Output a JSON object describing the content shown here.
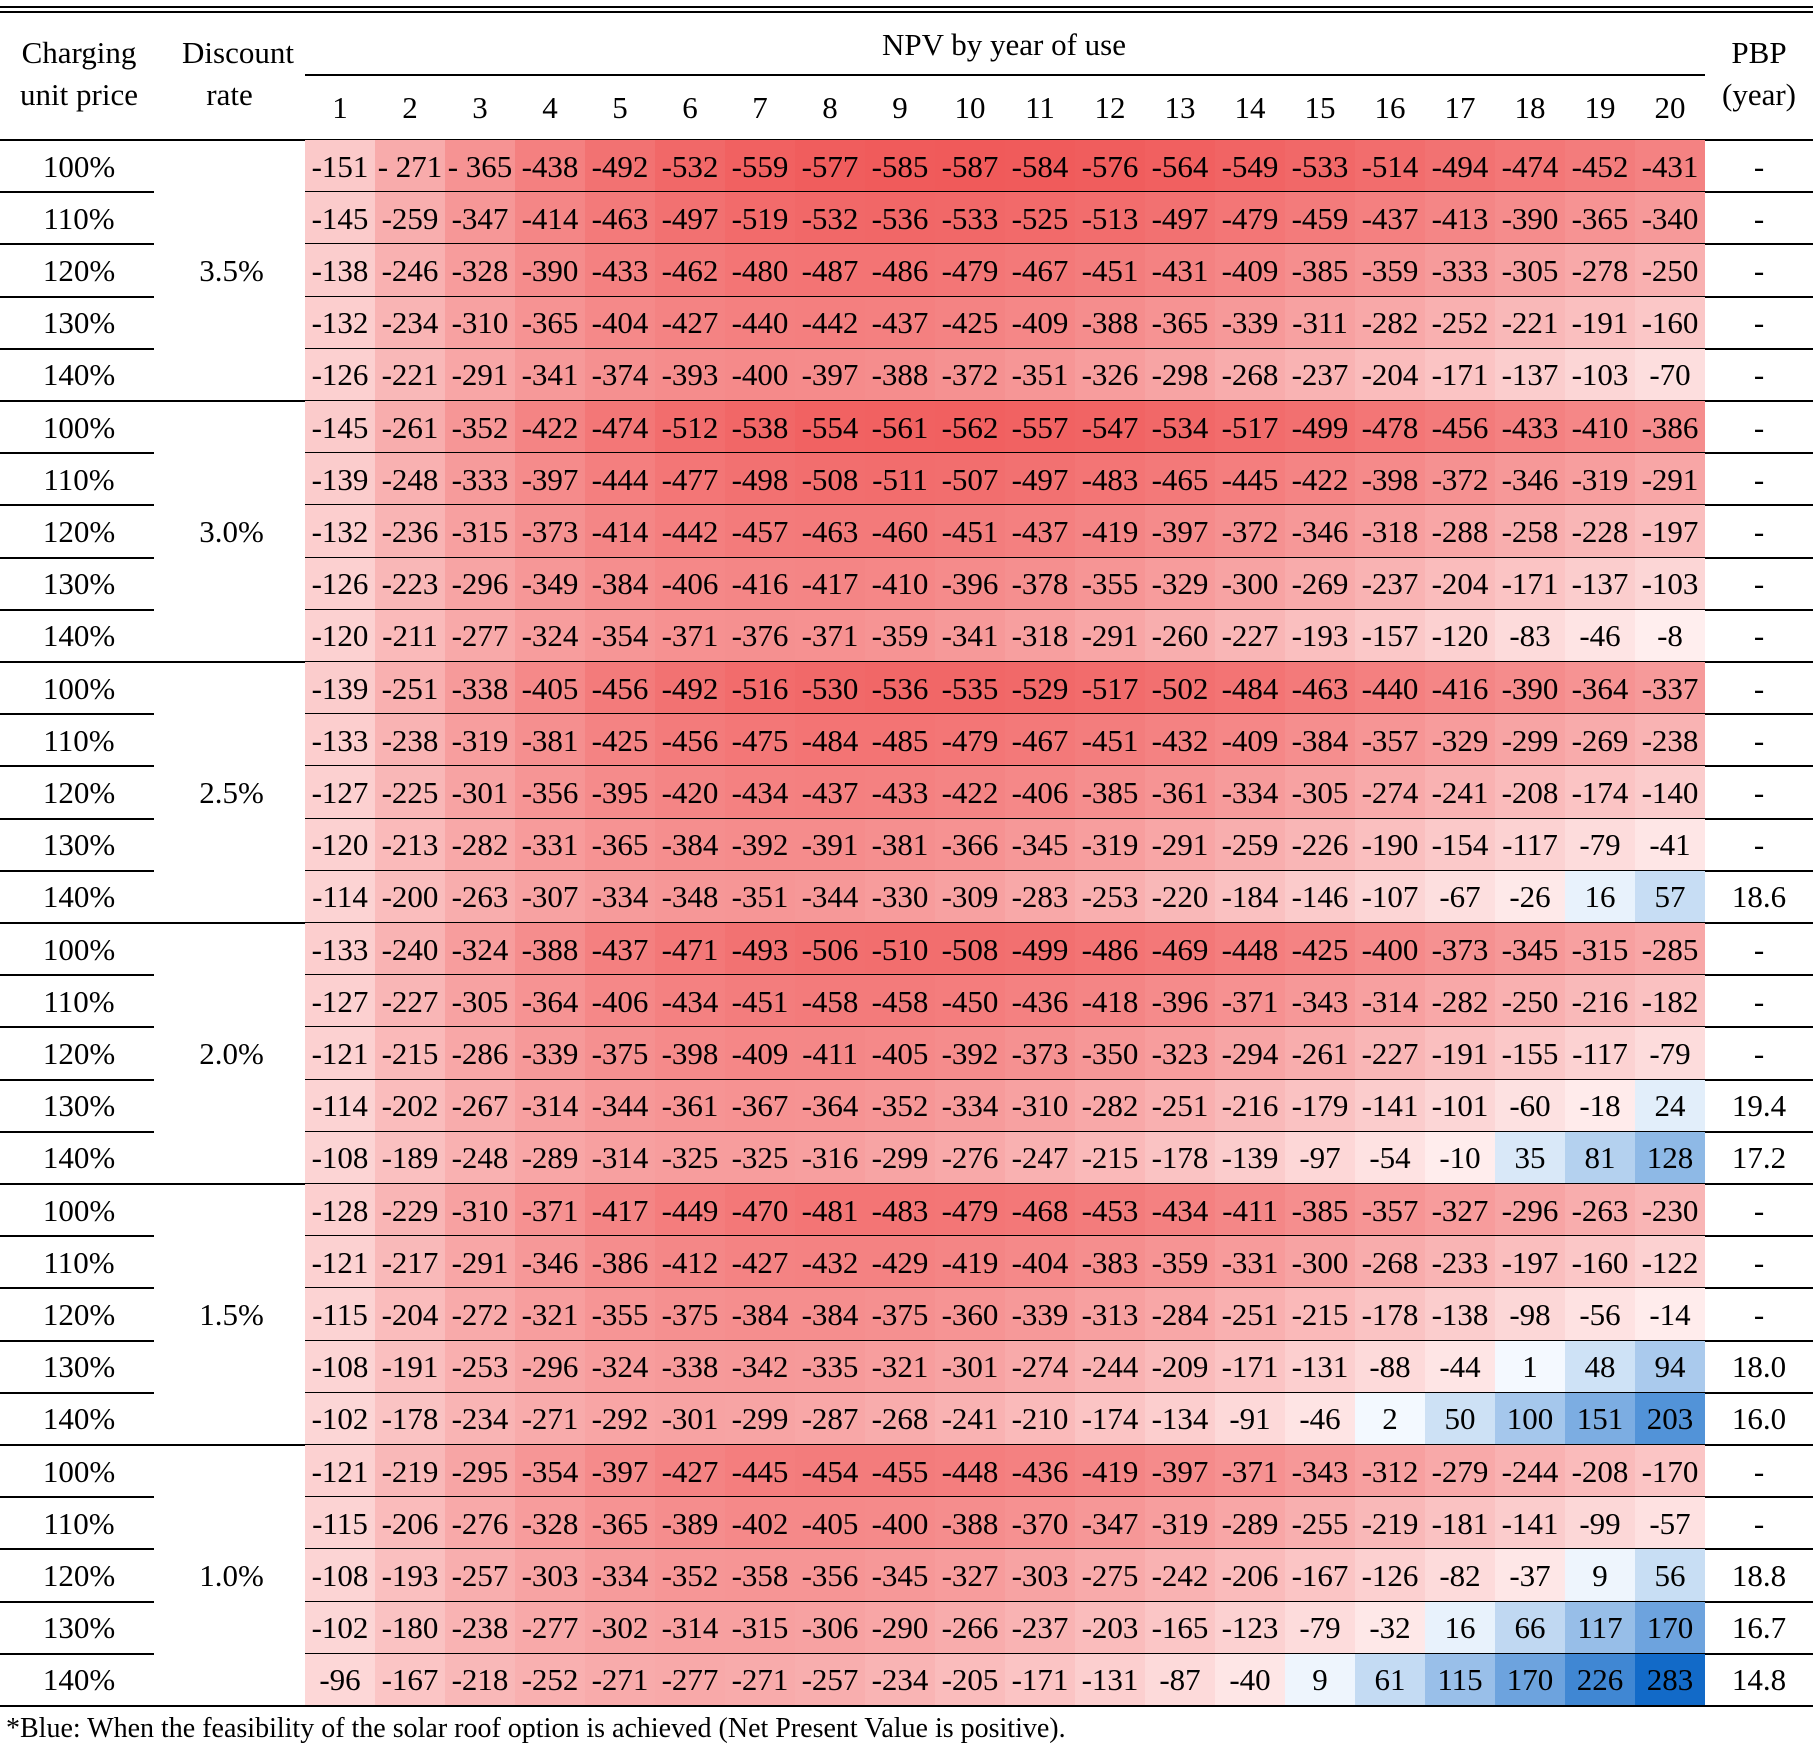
{
  "chart_data": {
    "type": "table",
    "headers": {
      "charging_unit_price": "Charging unit price",
      "discount_rate": "Discount rate",
      "npv_group": "NPV by year of use",
      "pbp": "PBP (year)",
      "years": [
        "1",
        "2",
        "3",
        "4",
        "5",
        "6",
        "7",
        "8",
        "9",
        "10",
        "11",
        "12",
        "13",
        "14",
        "15",
        "16",
        "17",
        "18",
        "19",
        "20"
      ]
    },
    "groups": [
      {
        "discount_rate": "3.5%",
        "rows": [
          {
            "price": "100%",
            "npv": [
              "-151",
              "- 271",
              "- 365",
              "-438",
              "-492",
              "-532",
              "-559",
              "-577",
              "-585",
              "-587",
              "-584",
              "-576",
              "-564",
              "-549",
              "-533",
              "-514",
              "-494",
              "-474",
              "-452",
              "-431"
            ],
            "pbp": "-"
          },
          {
            "price": "110%",
            "npv": [
              "-145",
              "-259",
              "-347",
              "-414",
              "-463",
              "-497",
              "-519",
              "-532",
              "-536",
              "-533",
              "-525",
              "-513",
              "-497",
              "-479",
              "-459",
              "-437",
              "-413",
              "-390",
              "-365",
              "-340"
            ],
            "pbp": "-"
          },
          {
            "price": "120%",
            "npv": [
              "-138",
              "-246",
              "-328",
              "-390",
              "-433",
              "-462",
              "-480",
              "-487",
              "-486",
              "-479",
              "-467",
              "-451",
              "-431",
              "-409",
              "-385",
              "-359",
              "-333",
              "-305",
              "-278",
              "-250"
            ],
            "pbp": "-"
          },
          {
            "price": "130%",
            "npv": [
              "-132",
              "-234",
              "-310",
              "-365",
              "-404",
              "-427",
              "-440",
              "-442",
              "-437",
              "-425",
              "-409",
              "-388",
              "-365",
              "-339",
              "-311",
              "-282",
              "-252",
              "-221",
              "-191",
              "-160"
            ],
            "pbp": "-"
          },
          {
            "price": "140%",
            "npv": [
              "-126",
              "-221",
              "-291",
              "-341",
              "-374",
              "-393",
              "-400",
              "-397",
              "-388",
              "-372",
              "-351",
              "-326",
              "-298",
              "-268",
              "-237",
              "-204",
              "-171",
              "-137",
              "-103",
              "-70"
            ],
            "pbp": "-"
          }
        ]
      },
      {
        "discount_rate": "3.0%",
        "rows": [
          {
            "price": "100%",
            "npv": [
              "-145",
              "-261",
              "-352",
              "-422",
              "-474",
              "-512",
              "-538",
              "-554",
              "-561",
              "-562",
              "-557",
              "-547",
              "-534",
              "-517",
              "-499",
              "-478",
              "-456",
              "-433",
              "-410",
              "-386"
            ],
            "pbp": "-"
          },
          {
            "price": "110%",
            "npv": [
              "-139",
              "-248",
              "-333",
              "-397",
              "-444",
              "-477",
              "-498",
              "-508",
              "-511",
              "-507",
              "-497",
              "-483",
              "-465",
              "-445",
              "-422",
              "-398",
              "-372",
              "-346",
              "-319",
              "-291"
            ],
            "pbp": "-"
          },
          {
            "price": "120%",
            "npv": [
              "-132",
              "-236",
              "-315",
              "-373",
              "-414",
              "-442",
              "-457",
              "-463",
              "-460",
              "-451",
              "-437",
              "-419",
              "-397",
              "-372",
              "-346",
              "-318",
              "-288",
              "-258",
              "-228",
              "-197"
            ],
            "pbp": "-"
          },
          {
            "price": "130%",
            "npv": [
              "-126",
              "-223",
              "-296",
              "-349",
              "-384",
              "-406",
              "-416",
              "-417",
              "-410",
              "-396",
              "-378",
              "-355",
              "-329",
              "-300",
              "-269",
              "-237",
              "-204",
              "-171",
              "-137",
              "-103"
            ],
            "pbp": "-"
          },
          {
            "price": "140%",
            "npv": [
              "-120",
              "-211",
              "-277",
              "-324",
              "-354",
              "-371",
              "-376",
              "-371",
              "-359",
              "-341",
              "-318",
              "-291",
              "-260",
              "-227",
              "-193",
              "-157",
              "-120",
              "-83",
              "-46",
              "-8"
            ],
            "pbp": "-"
          }
        ]
      },
      {
        "discount_rate": "2.5%",
        "rows": [
          {
            "price": "100%",
            "npv": [
              "-139",
              "-251",
              "-338",
              "-405",
              "-456",
              "-492",
              "-516",
              "-530",
              "-536",
              "-535",
              "-529",
              "-517",
              "-502",
              "-484",
              "-463",
              "-440",
              "-416",
              "-390",
              "-364",
              "-337"
            ],
            "pbp": "-"
          },
          {
            "price": "110%",
            "npv": [
              "-133",
              "-238",
              "-319",
              "-381",
              "-425",
              "-456",
              "-475",
              "-484",
              "-485",
              "-479",
              "-467",
              "-451",
              "-432",
              "-409",
              "-384",
              "-357",
              "-329",
              "-299",
              "-269",
              "-238"
            ],
            "pbp": "-"
          },
          {
            "price": "120%",
            "npv": [
              "-127",
              "-225",
              "-301",
              "-356",
              "-395",
              "-420",
              "-434",
              "-437",
              "-433",
              "-422",
              "-406",
              "-385",
              "-361",
              "-334",
              "-305",
              "-274",
              "-241",
              "-208",
              "-174",
              "-140"
            ],
            "pbp": "-"
          },
          {
            "price": "130%",
            "npv": [
              "-120",
              "-213",
              "-282",
              "-331",
              "-365",
              "-384",
              "-392",
              "-391",
              "-381",
              "-366",
              "-345",
              "-319",
              "-291",
              "-259",
              "-226",
              "-190",
              "-154",
              "-117",
              "-79",
              "-41"
            ],
            "pbp": "-"
          },
          {
            "price": "140%",
            "npv": [
              "-114",
              "-200",
              "-263",
              "-307",
              "-334",
              "-348",
              "-351",
              "-344",
              "-330",
              "-309",
              "-283",
              "-253",
              "-220",
              "-184",
              "-146",
              "-107",
              "-67",
              "-26",
              "16",
              "57"
            ],
            "pbp": "18.6"
          }
        ]
      },
      {
        "discount_rate": "2.0%",
        "rows": [
          {
            "price": "100%",
            "npv": [
              "-133",
              "-240",
              "-324",
              "-388",
              "-437",
              "-471",
              "-493",
              "-506",
              "-510",
              "-508",
              "-499",
              "-486",
              "-469",
              "-448",
              "-425",
              "-400",
              "-373",
              "-345",
              "-315",
              "-285"
            ],
            "pbp": "-"
          },
          {
            "price": "110%",
            "npv": [
              "-127",
              "-227",
              "-305",
              "-364",
              "-406",
              "-434",
              "-451",
              "-458",
              "-458",
              "-450",
              "-436",
              "-418",
              "-396",
              "-371",
              "-343",
              "-314",
              "-282",
              "-250",
              "-216",
              "-182"
            ],
            "pbp": "-"
          },
          {
            "price": "120%",
            "npv": [
              "-121",
              "-215",
              "-286",
              "-339",
              "-375",
              "-398",
              "-409",
              "-411",
              "-405",
              "-392",
              "-373",
              "-350",
              "-323",
              "-294",
              "-261",
              "-227",
              "-191",
              "-155",
              "-117",
              "-79"
            ],
            "pbp": "-"
          },
          {
            "price": "130%",
            "npv": [
              "-114",
              "-202",
              "-267",
              "-314",
              "-344",
              "-361",
              "-367",
              "-364",
              "-352",
              "-334",
              "-310",
              "-282",
              "-251",
              "-216",
              "-179",
              "-141",
              "-101",
              "-60",
              "-18",
              "24"
            ],
            "pbp": "19.4"
          },
          {
            "price": "140%",
            "npv": [
              "-108",
              "-189",
              "-248",
              "-289",
              "-314",
              "-325",
              "-325",
              "-316",
              "-299",
              "-276",
              "-247",
              "-215",
              "-178",
              "-139",
              "-97",
              "-54",
              "-10",
              "35",
              "81",
              "128"
            ],
            "pbp": "17.2"
          }
        ]
      },
      {
        "discount_rate": "1.5%",
        "rows": [
          {
            "price": "100%",
            "npv": [
              "-128",
              "-229",
              "-310",
              "-371",
              "-417",
              "-449",
              "-470",
              "-481",
              "-483",
              "-479",
              "-468",
              "-453",
              "-434",
              "-411",
              "-385",
              "-357",
              "-327",
              "-296",
              "-263",
              "-230"
            ],
            "pbp": "-"
          },
          {
            "price": "110%",
            "npv": [
              "-121",
              "-217",
              "-291",
              "-346",
              "-386",
              "-412",
              "-427",
              "-432",
              "-429",
              "-419",
              "-404",
              "-383",
              "-359",
              "-331",
              "-300",
              "-268",
              "-233",
              "-197",
              "-160",
              "-122"
            ],
            "pbp": "-"
          },
          {
            "price": "120%",
            "npv": [
              "-115",
              "-204",
              "-272",
              "-321",
              "-355",
              "-375",
              "-384",
              "-384",
              "-375",
              "-360",
              "-339",
              "-313",
              "-284",
              "-251",
              "-215",
              "-178",
              "-138",
              "-98",
              "-56",
              "-14"
            ],
            "pbp": "-"
          },
          {
            "price": "130%",
            "npv": [
              "-108",
              "-191",
              "-253",
              "-296",
              "-324",
              "-338",
              "-342",
              "-335",
              "-321",
              "-301",
              "-274",
              "-244",
              "-209",
              "-171",
              "-131",
              "-88",
              "-44",
              "1",
              "48",
              "94"
            ],
            "pbp": "18.0"
          },
          {
            "price": "140%",
            "npv": [
              "-102",
              "-178",
              "-234",
              "-271",
              "-292",
              "-301",
              "-299",
              "-287",
              "-268",
              "-241",
              "-210",
              "-174",
              "-134",
              "-91",
              "-46",
              "2",
              "50",
              "100",
              "151",
              "203"
            ],
            "pbp": "16.0"
          }
        ]
      },
      {
        "discount_rate": "1.0%",
        "rows": [
          {
            "price": "100%",
            "npv": [
              "-121",
              "-219",
              "-295",
              "-354",
              "-397",
              "-427",
              "-445",
              "-454",
              "-455",
              "-448",
              "-436",
              "-419",
              "-397",
              "-371",
              "-343",
              "-312",
              "-279",
              "-244",
              "-208",
              "-170"
            ],
            "pbp": "-"
          },
          {
            "price": "110%",
            "npv": [
              "-115",
              "-206",
              "-276",
              "-328",
              "-365",
              "-389",
              "-402",
              "-405",
              "-400",
              "-388",
              "-370",
              "-347",
              "-319",
              "-289",
              "-255",
              "-219",
              "-181",
              "-141",
              "-99",
              "-57"
            ],
            "pbp": "-"
          },
          {
            "price": "120%",
            "npv": [
              "-108",
              "-193",
              "-257",
              "-303",
              "-334",
              "-352",
              "-358",
              "-356",
              "-345",
              "-327",
              "-303",
              "-275",
              "-242",
              "-206",
              "-167",
              "-126",
              "-82",
              "-37",
              "9",
              "56"
            ],
            "pbp": "18.8"
          },
          {
            "price": "130%",
            "npv": [
              "-102",
              "-180",
              "-238",
              "-277",
              "-302",
              "-314",
              "-315",
              "-306",
              "-290",
              "-266",
              "-237",
              "-203",
              "-165",
              "-123",
              "-79",
              "-32",
              "16",
              "66",
              "117",
              "170"
            ],
            "pbp": "16.7"
          },
          {
            "price": "140%",
            "npv": [
              "-96",
              "-167",
              "-218",
              "-252",
              "-271",
              "-277",
              "-271",
              "-257",
              "-234",
              "-205",
              "-171",
              "-131",
              "-87",
              "-40",
              "9",
              "61",
              "115",
              "170",
              "226",
              "283"
            ],
            "pbp": "14.8"
          }
        ]
      }
    ],
    "colors": {
      "negative": "#f05a5a",
      "positive": "#1a6fc4"
    },
    "footnote": "*Blue: When the feasibility of the solar roof option is achieved (Net Present Value is positive)."
  }
}
